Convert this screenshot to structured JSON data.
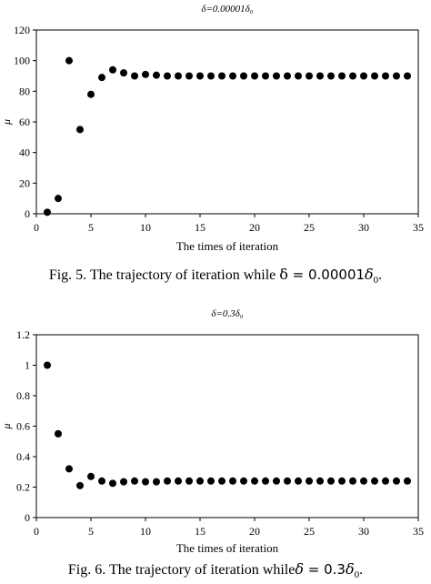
{
  "chart_data": [
    {
      "type": "scatter",
      "title": "δ=0.00001δ₀",
      "xlabel": "The times of iteration",
      "ylabel": "μ",
      "xlim": [
        0,
        35
      ],
      "ylim": [
        0,
        120
      ],
      "xticks": [
        "0",
        "5",
        "10",
        "15",
        "20",
        "25",
        "30",
        "35"
      ],
      "yticks": [
        "0",
        "20",
        "40",
        "60",
        "80",
        "100",
        "120"
      ],
      "grid": false,
      "legend": "none",
      "marker_color": "#000000",
      "x": [
        1,
        2,
        3,
        4,
        5,
        6,
        7,
        8,
        9,
        10,
        11,
        12,
        13,
        14,
        15,
        16,
        17,
        18,
        19,
        20,
        21,
        22,
        23,
        24,
        25,
        26,
        27,
        28,
        29,
        30,
        31,
        32,
        33,
        34
      ],
      "y": [
        1,
        10,
        100,
        55,
        78,
        89,
        94,
        92,
        90,
        91,
        90.5,
        90,
        90,
        90,
        90,
        90,
        90,
        90,
        90,
        90,
        90,
        90,
        90,
        90,
        90,
        90,
        90,
        90,
        90,
        90,
        90,
        90,
        90,
        90
      ]
    },
    {
      "type": "scatter",
      "title": "δ=0.3δ₀",
      "xlabel": "The times of iteration",
      "ylabel": "μ",
      "xlim": [
        0,
        35
      ],
      "ylim": [
        0,
        1.2
      ],
      "xticks": [
        "0",
        "5",
        "10",
        "15",
        "20",
        "25",
        "30",
        "35"
      ],
      "yticks": [
        "0",
        "0.2",
        "0.4",
        "0.6",
        "0.8",
        "1",
        "1.2"
      ],
      "grid": false,
      "legend": "none",
      "marker_color": "#000000",
      "x": [
        1,
        2,
        3,
        4,
        5,
        6,
        7,
        8,
        9,
        10,
        11,
        12,
        13,
        14,
        15,
        16,
        17,
        18,
        19,
        20,
        21,
        22,
        23,
        24,
        25,
        26,
        27,
        28,
        29,
        30,
        31,
        32,
        33,
        34
      ],
      "y": [
        1.0,
        0.55,
        0.32,
        0.21,
        0.27,
        0.24,
        0.225,
        0.235,
        0.24,
        0.235,
        0.235,
        0.24,
        0.24,
        0.24,
        0.24,
        0.24,
        0.24,
        0.24,
        0.24,
        0.24,
        0.24,
        0.24,
        0.24,
        0.24,
        0.24,
        0.24,
        0.24,
        0.24,
        0.24,
        0.24,
        0.24,
        0.24,
        0.24,
        0.24
      ]
    }
  ],
  "captions": [
    {
      "prefix": "Fig. 5. The trajectory of iteration while ",
      "symbol": "δ",
      "equals": " = ",
      "value": "0.00001",
      "delta": "δ",
      "sub": "0",
      "suffix": "."
    },
    {
      "prefix": "Fig. 6. The trajectory of iteration while",
      "symbol": "δ",
      "equals": " = ",
      "value": "0.3",
      "delta": "δ",
      "sub": "0",
      "suffix": "."
    }
  ]
}
